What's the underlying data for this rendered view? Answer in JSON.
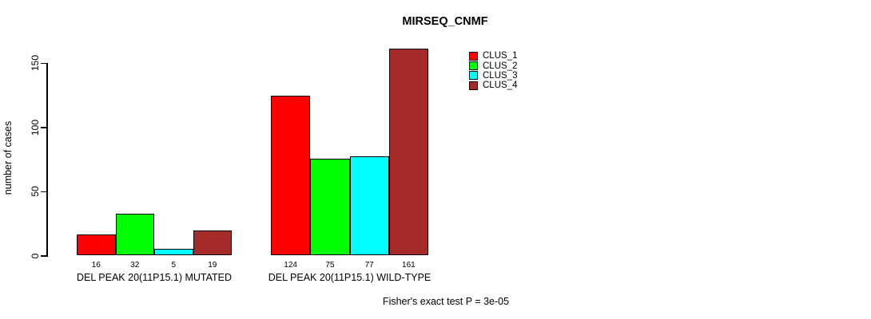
{
  "title": "MIRSEQ_CNMF",
  "chart_data": {
    "type": "bar",
    "title": "MIRSEQ_CNMF",
    "xlabel": "",
    "ylabel": "number of cases",
    "ylim": [
      0,
      150
    ],
    "yticks": [
      0,
      50,
      100,
      150
    ],
    "grid": false,
    "categories": [
      "DEL PEAK 20(11P15.1) MUTATED",
      "DEL PEAK 20(11P15.1) WILD-TYPE"
    ],
    "series": [
      {
        "name": "CLUS_1",
        "color": "#FF0000",
        "values": [
          16,
          124
        ]
      },
      {
        "name": "CLUS_2",
        "color": "#00FF00",
        "values": [
          32,
          75
        ]
      },
      {
        "name": "CLUS_3",
        "color": "#00FFFF",
        "values": [
          5,
          77
        ]
      },
      {
        "name": "CLUS_4",
        "color": "#A52A2A",
        "values": [
          19,
          161
        ]
      }
    ],
    "bar_value_labels": [
      [
        "16",
        "32",
        "5",
        "19"
      ],
      [
        "124",
        "75",
        "77",
        "161"
      ]
    ],
    "legend": [
      "CLUS_1",
      "CLUS_2",
      "CLUS_3",
      "CLUS_4"
    ],
    "legend_position": "upper-center-right",
    "annotation": "Fisher's exact test P = 3e-05"
  }
}
